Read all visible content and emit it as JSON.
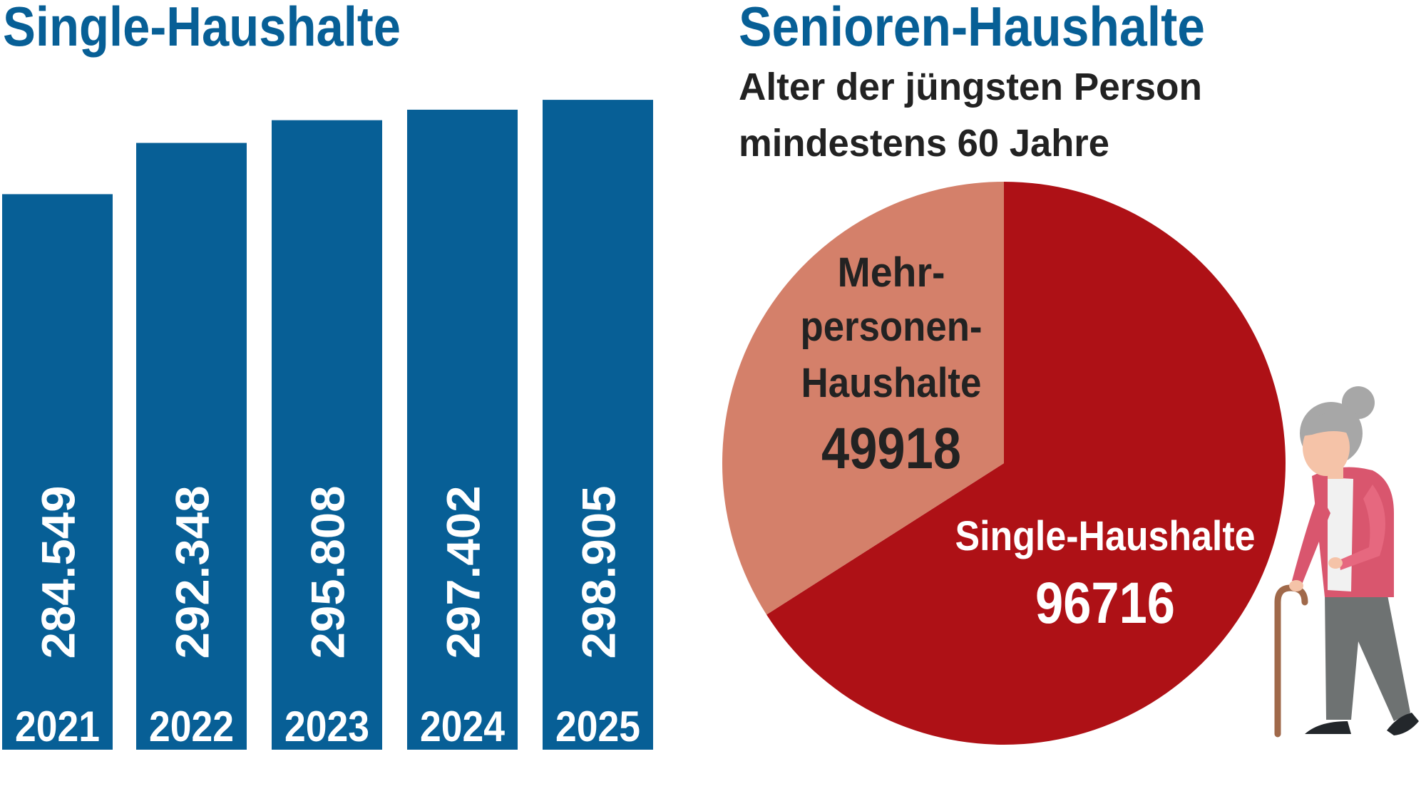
{
  "chart_data": [
    {
      "type": "bar",
      "title": "Single-Haushalte",
      "categories": [
        "2021",
        "2022",
        "2023",
        "2024",
        "2025"
      ],
      "values": [
        284549,
        292348,
        295808,
        297402,
        298905
      ],
      "value_labels": [
        "284.549",
        "292.348",
        "295.808",
        "297.402",
        "298.905"
      ],
      "ylim": [
        200000,
        300000
      ],
      "grid": false,
      "color": "#075f96"
    },
    {
      "type": "pie",
      "title": "Senioren-Haushalte",
      "subtitle": [
        "Alter der jüngsten Person",
        "mindestens 60 Jahre"
      ],
      "slices": [
        {
          "label": "Single-Haushalte",
          "value": 96716,
          "value_label": "96716",
          "color": "#ae1116"
        },
        {
          "label_lines": [
            "Mehr-",
            "personen-",
            "Haushalte"
          ],
          "value": 49918,
          "value_label": "49918",
          "color": "#d4806a"
        }
      ]
    }
  ],
  "colors": {
    "title": "#075f96",
    "text": "#222222"
  },
  "icons": {
    "illustration": "elderly-woman-with-cane-icon"
  }
}
